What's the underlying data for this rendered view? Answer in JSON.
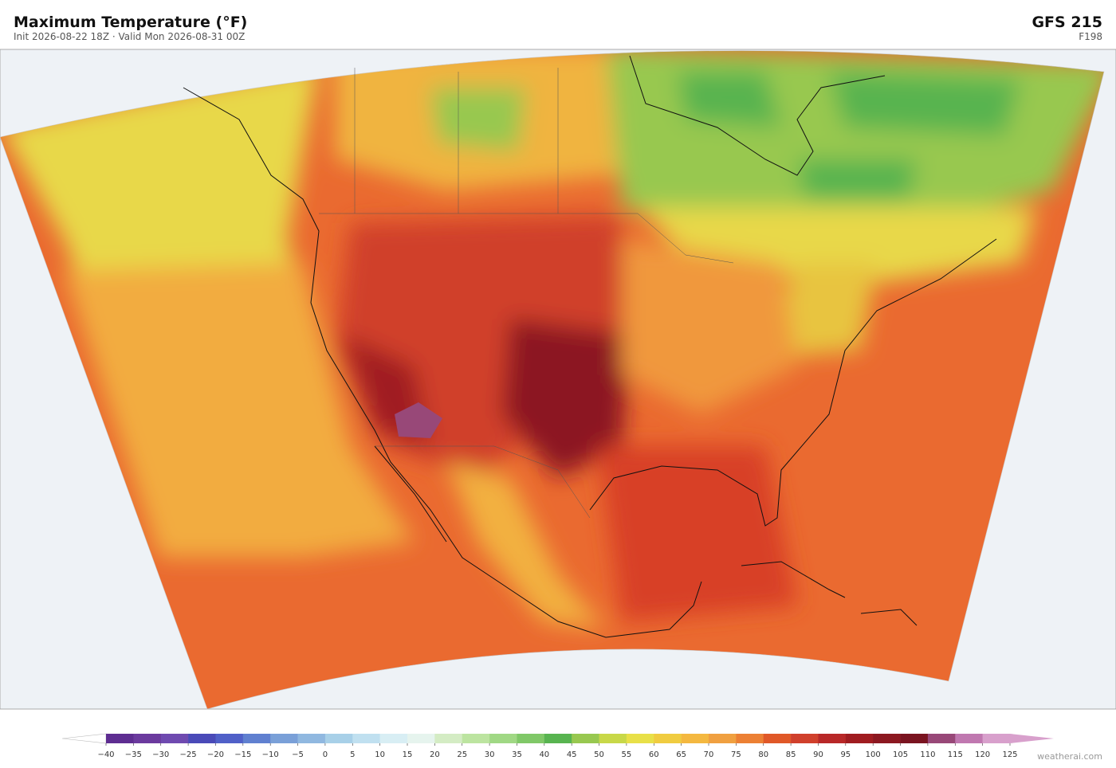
{
  "header": {
    "title": "Maximum Temperature  (°F)",
    "subtitle": "Init 2026-08-22 18Z  ·  Valid Mon 2026-08-31 00Z",
    "model": "GFS  215",
    "forecast_hour": "F198"
  },
  "colorbar": {
    "ticks": [
      {
        "value": -40,
        "label": "−40"
      },
      {
        "value": -35,
        "label": "−35"
      },
      {
        "value": -30,
        "label": "−30"
      },
      {
        "value": -25,
        "label": "−25"
      },
      {
        "value": -20,
        "label": "−20"
      },
      {
        "value": -15,
        "label": "−15"
      },
      {
        "value": -10,
        "label": "−10"
      },
      {
        "value": -5,
        "label": "−5"
      },
      0,
      5,
      10,
      15,
      20,
      25,
      30,
      35,
      40,
      45,
      50,
      55,
      60,
      65,
      70,
      75,
      80,
      85,
      90,
      95,
      100,
      105,
      110,
      115,
      120,
      125
    ],
    "colors": [
      "#5e2d91",
      "#6b3a9e",
      "#6f4ab0",
      "#4a4ab8",
      "#5060c8",
      "#6080d0",
      "#7aa0d8",
      "#90b8e0",
      "#a8d0e8",
      "#c0e0f0",
      "#d8eef4",
      "#e6f4ee",
      "#d4ecc4",
      "#bce4a0",
      "#a0d884",
      "#80c868",
      "#58b450",
      "#98c850",
      "#c8d848",
      "#e8e048",
      "#f0cc40",
      "#f4b840",
      "#f0a040",
      "#ec8034",
      "#e05828",
      "#d0402c",
      "#b82828",
      "#a01c20",
      "#8c1820",
      "#7a1420",
      "#984878",
      "#c078b0",
      "#d8a0cc"
    ],
    "under_color": "#ffffff",
    "over_color": "#d8a0cc"
  },
  "footer": {
    "credit": "weatherai.com"
  }
}
